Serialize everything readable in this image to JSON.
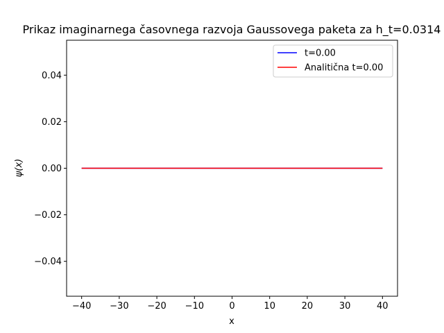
{
  "chart_data": {
    "type": "line",
    "title": "Prikaz imaginarnega časovnega razvoja Gaussovega paketa za h_t=0.0314",
    "xlabel": "x",
    "ylabel": "ψ(x)",
    "xlim": [
      -44,
      44
    ],
    "ylim": [
      -0.055,
      0.055
    ],
    "xticks": [
      -40,
      -30,
      -20,
      -10,
      0,
      10,
      20,
      30,
      40
    ],
    "xtick_labels": [
      "−40",
      "−30",
      "−20",
      "−10",
      "0",
      "10",
      "20",
      "30",
      "40"
    ],
    "yticks": [
      -0.04,
      -0.02,
      0.0,
      0.02,
      0.04
    ],
    "ytick_labels": [
      "−0.04",
      "−0.02",
      "0.00",
      "0.02",
      "0.04"
    ],
    "grid": false,
    "legend_position": "top-right",
    "series": [
      {
        "name": "t=0.00",
        "color": "#0000ff",
        "x": [
          -40,
          40
        ],
        "y": [
          0,
          0
        ]
      },
      {
        "name": "Analitična t=0.00",
        "color": "#ff0000",
        "x": [
          -40,
          40
        ],
        "y": [
          0,
          0
        ]
      }
    ]
  }
}
